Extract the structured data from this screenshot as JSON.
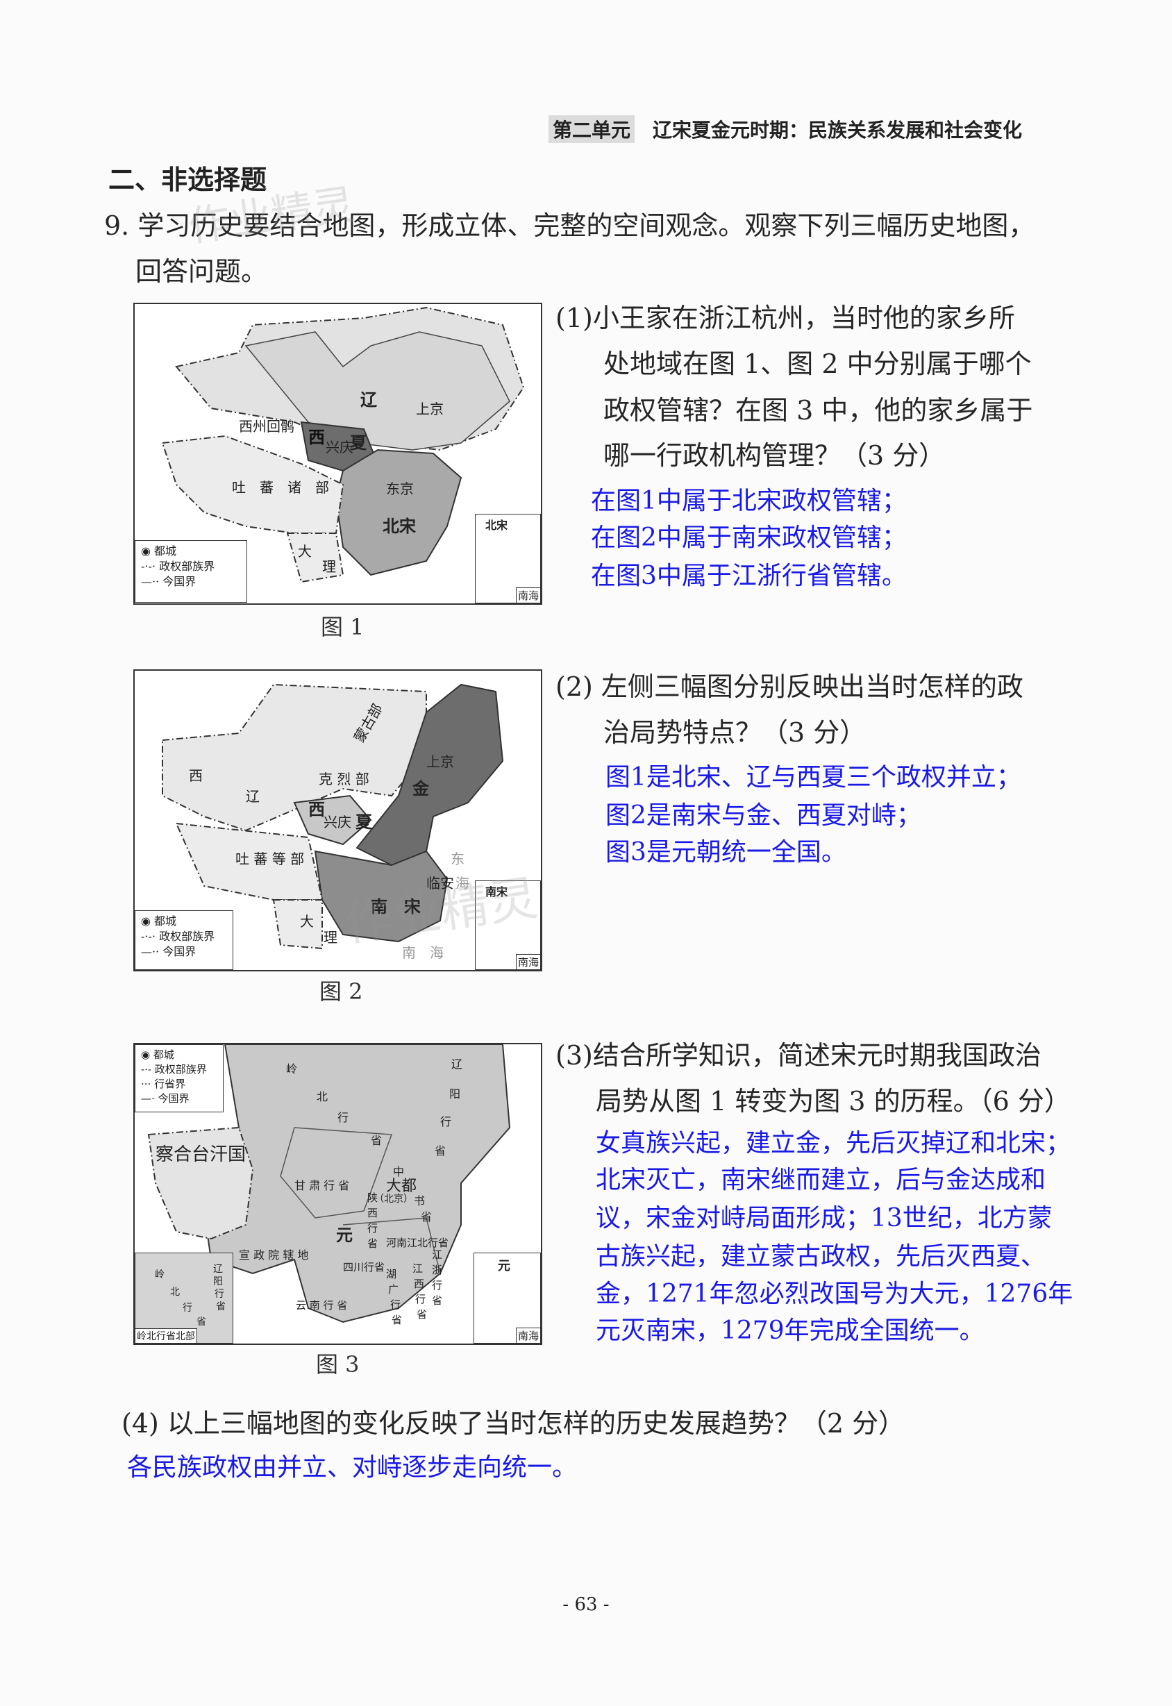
{
  "header": {
    "unit": "第二单元",
    "unit_title": "辽宋夏金元时期：民族关系发展和社会变化"
  },
  "section_title": "二、非选择题",
  "question": {
    "number_text_line1": "9. 学习历史要结合地图，形成立体、完整的空间观念。观察下列三幅历史地图，",
    "text_line2": "回答问题。"
  },
  "maps": [
    {
      "caption": "图 1",
      "labels": [
        "辽",
        "上京",
        "西州回鹘",
        "西",
        "兴庆",
        "夏",
        "吐　蕃　诸　部",
        "东京",
        "北宋",
        "大",
        "理"
      ],
      "inset_labels": [
        "北宋",
        "南海"
      ],
      "legend": [
        "都城",
        "政权部族界",
        "今国界"
      ]
    },
    {
      "caption": "图 2",
      "labels": [
        "蒙古部",
        "上京",
        "金",
        "西",
        "辽",
        "克 烈 部",
        "西",
        "兴庆",
        "夏",
        "吐 蕃 等 部",
        "临安",
        "南　宋",
        "大",
        "理",
        "东",
        "海",
        "南　海"
      ],
      "inset_labels": [
        "南宋",
        "南海"
      ],
      "legend": [
        "都城",
        "政权部族界",
        "今国界"
      ]
    },
    {
      "caption": "图 3",
      "labels": [
        "岭",
        "北",
        "行",
        "省",
        "辽",
        "阳",
        "行",
        "省",
        "察合台汗国",
        "甘 肃 行 省",
        "中",
        "大都",
        "（北京）",
        "书",
        "省",
        "陕",
        "西",
        "行",
        "省",
        "元",
        "宣 政 院 辖 地",
        "河南江北行省",
        "四川行省",
        "江",
        "浙",
        "行",
        "省",
        "湖",
        "广",
        "行",
        "省",
        "江",
        "西",
        "行",
        "省",
        "云 南 行 省"
      ],
      "inset_labels": [
        "元",
        "南海"
      ],
      "north_inset": {
        "title": "岭北行省北部",
        "labels": [
          "岭",
          "北",
          "行",
          "省",
          "辽",
          "阳",
          "行",
          "省"
        ]
      },
      "legend": [
        "都城",
        "政权部族界",
        "行省界",
        "今国界"
      ]
    }
  ],
  "sub1": {
    "lines": [
      "(1)小王家在浙江杭州，当时他的家乡所",
      "处地域在图 1、图 2 中分别属于哪个",
      "政权管辖？在图 3 中，他的家乡属于",
      "哪一行政机构管理？（3 分）"
    ],
    "answer": [
      "在图1中属于北宋政权管辖；",
      "在图2中属于南宋政权管辖；",
      "在图3中属于江浙行省管辖。"
    ]
  },
  "sub2": {
    "lines": [
      "(2) 左侧三幅图分别反映出当时怎样的政",
      "治局势特点？（3 分）"
    ],
    "answer": [
      "图1是北宋、辽与西夏三个政权并立；",
      "图2是南宋与金、西夏对峙；",
      "图3是元朝统一全国。"
    ]
  },
  "sub3": {
    "lines": [
      "(3)结合所学知识，简述宋元时期我国政治",
      "局势从图 1 转变为图 3 的历程。（6 分）"
    ],
    "answer": [
      "女真族兴起，建立金，先后灭掉辽和北宋；",
      "北宋灭亡，南宋继而建立，后与金达成和",
      "议，宋金对峙局面形成；13世纪，北方蒙",
      "古族兴起，建立蒙古政权，先后灭西夏、",
      "金，1271年忽必烈改国号为大元，1276年",
      "元灭南宋，1279年完成全国统一。"
    ]
  },
  "sub4": {
    "line": "(4) 以上三幅地图的变化反映了当时怎样的历史发展趋势？（2 分）",
    "answer": "各民族政权由并立、对峙逐步走向统一。"
  },
  "watermark": "作业精灵",
  "page_number": "- 63 -",
  "colors": {
    "answer": "#1a1ae6",
    "text": "#262626",
    "map_light": "#e2e2e2",
    "map_mid": "#a9a9a9",
    "map_dark": "#6d6d6d"
  }
}
